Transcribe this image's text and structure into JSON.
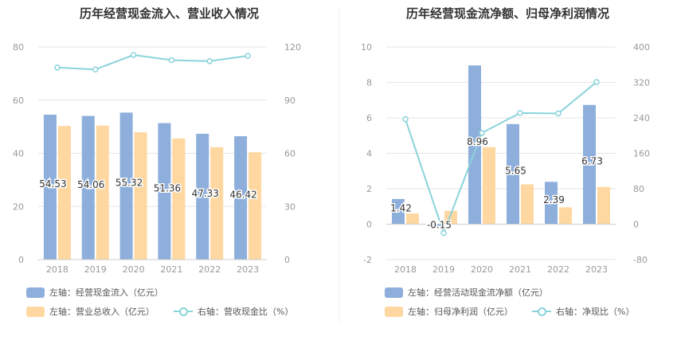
{
  "colors": {
    "bar1": "#8eafdc",
    "bar2": "#fed8a0",
    "line": "#8bd3db",
    "grid": "#e6e6e6",
    "axis_text": "#999999",
    "label_text": "#333333"
  },
  "left": {
    "title": "历年经营现金流入、营业收入情况",
    "legend": {
      "bar1": "左轴：经营现金流入（亿元）",
      "bar2": "左轴：营业总收入（亿元）",
      "line": "右轴：营收现金比（%）"
    }
  },
  "right": {
    "title": "历年经营现金流净额、归母净利润情况",
    "legend": {
      "bar1": "左轴：经营活动现金流净额（亿元）",
      "bar2": "左轴：归母净利润（亿元）",
      "line": "右轴：净现比（%）"
    }
  },
  "chart_data": [
    {
      "type": "bar",
      "title": "历年经营现金流入、营业收入情况",
      "categories": [
        "2018",
        "2019",
        "2020",
        "2021",
        "2022",
        "2023"
      ],
      "series": [
        {
          "name": "左轴：经营现金流入（亿元）",
          "axis": "left",
          "values": [
            54.53,
            54.06,
            55.32,
            51.36,
            47.33,
            46.42
          ],
          "labels": [
            "54.53",
            "54.06",
            "55.32",
            "51.36",
            "47.33",
            "46.42"
          ]
        },
        {
          "name": "左轴：营业总收入（亿元）",
          "axis": "left",
          "values": [
            50.3,
            50.4,
            47.9,
            45.6,
            42.3,
            40.4
          ]
        },
        {
          "name": "右轴：营收现金比（%）",
          "axis": "right",
          "kind": "line",
          "values": [
            108.4,
            107.3,
            115.5,
            112.6,
            112.0,
            115.0
          ]
        }
      ],
      "left_axis": {
        "min": 0,
        "max": 80,
        "ticks": [
          0,
          20,
          40,
          60,
          80
        ]
      },
      "right_axis": {
        "min": 0,
        "max": 120,
        "ticks": [
          0,
          30,
          60,
          90,
          120
        ]
      }
    },
    {
      "type": "bar",
      "title": "历年经营现金流净额、归母净利润情况",
      "categories": [
        "2018",
        "2019",
        "2020",
        "2021",
        "2022",
        "2023"
      ],
      "series": [
        {
          "name": "左轴：经营活动现金流净额（亿元）",
          "axis": "left",
          "values": [
            1.42,
            -0.15,
            8.96,
            5.65,
            2.39,
            6.73
          ],
          "labels": [
            "1.42",
            "-0.15",
            "8.96",
            "5.65",
            "2.39",
            "6.73"
          ]
        },
        {
          "name": "左轴：归母净利润（亿元）",
          "axis": "left",
          "values": [
            0.6,
            0.75,
            4.35,
            2.25,
            0.95,
            2.1
          ]
        },
        {
          "name": "右轴：净现比（%）",
          "axis": "right",
          "kind": "line",
          "values": [
            237,
            -20,
            206,
            251,
            250,
            321
          ]
        }
      ],
      "left_axis": {
        "min": -2,
        "max": 10,
        "ticks": [
          -2,
          0,
          2,
          4,
          6,
          8,
          10
        ]
      },
      "right_axis": {
        "min": -80,
        "max": 400,
        "ticks": [
          -80,
          0,
          80,
          160,
          240,
          320,
          400
        ]
      }
    }
  ]
}
